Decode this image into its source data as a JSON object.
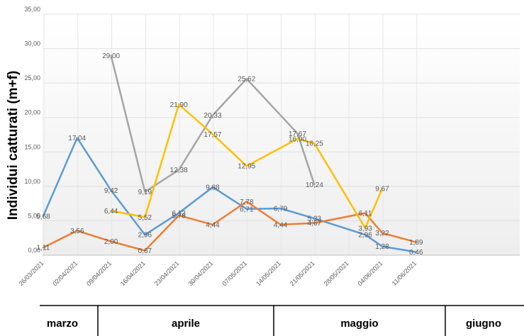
{
  "chart_data": {
    "type": "line",
    "ylabel": "Individui catturati (m+f)",
    "ylim": [
      0,
      35
    ],
    "yticks": [
      "0,00",
      "5,00",
      "10,00",
      "15,00",
      "20,00",
      "25,00",
      "30,00",
      "35,00"
    ],
    "x": [
      "26/03/2021",
      "02/04/2021",
      "09/04/2021",
      "16/04/2021",
      "23/04/2021",
      "30/04/2021",
      "07/05/2021",
      "14/05/2021",
      "21/05/2021",
      "28/05/2021",
      "04/06/2021",
      "11/06/2021"
    ],
    "grid": true,
    "series": [
      {
        "color": "#5B9BD5",
        "points": [
          {
            "x": 0,
            "y": 5.68,
            "label": "5,68"
          },
          {
            "x": 1,
            "y": 17.04,
            "label": "17,04"
          },
          {
            "x": 2,
            "y": 9.42,
            "label": "9,42"
          },
          {
            "x": 3,
            "y": 2.96,
            "label": "2,96"
          },
          {
            "x": 4,
            "y": 6.12,
            "label": "6,12"
          },
          {
            "x": 5,
            "y": 9.88,
            "label": "9,88"
          },
          {
            "x": 6,
            "y": 6.71,
            "label": "6,71"
          },
          {
            "x": 7,
            "y": 6.79,
            "label": "6,79"
          },
          {
            "x": 8,
            "y": 5.33,
            "label": "5,33"
          },
          {
            "x": 9.5,
            "y": 2.96,
            "label": "2,96"
          },
          {
            "x": 10,
            "y": 1.28,
            "label": "1,28"
          },
          {
            "x": 11,
            "y": 0.46,
            "label": "0,46"
          }
        ]
      },
      {
        "color": "#ED7D31",
        "points": [
          {
            "x": 0,
            "y": 1.11,
            "label": "1,11"
          },
          {
            "x": 1,
            "y": 3.56,
            "label": "3,56"
          },
          {
            "x": 2,
            "y": 2.0,
            "label": "2,00"
          },
          {
            "x": 3,
            "y": 0.67,
            "label": "0,67"
          },
          {
            "x": 4,
            "y": 5.78,
            "label": "5,78"
          },
          {
            "x": 5,
            "y": 4.44,
            "label": "4,44"
          },
          {
            "x": 6,
            "y": 7.78,
            "label": "7,78"
          },
          {
            "x": 7,
            "y": 4.44,
            "label": "4,44"
          },
          {
            "x": 8,
            "y": 4.67,
            "label": "4,67"
          },
          {
            "x": 9.5,
            "y": 6.11,
            "label": "6,11"
          },
          {
            "x": 10,
            "y": 3.22,
            "label": "3,22"
          },
          {
            "x": 11,
            "y": 1.89,
            "label": "1,89"
          }
        ]
      },
      {
        "color": "#A5A5A5",
        "points": [
          {
            "x": 2,
            "y": 29.0,
            "label": "29,00"
          },
          {
            "x": 3,
            "y": 9.19,
            "label": "9,19"
          },
          {
            "x": 4,
            "y": 12.38,
            "label": "12,38"
          },
          {
            "x": 5,
            "y": 20.33,
            "label": "20,33"
          },
          {
            "x": 6,
            "y": 25.62,
            "label": "25,62"
          },
          {
            "x": 7.5,
            "y": 17.67,
            "label": "17,67"
          },
          {
            "x": 8,
            "y": 10.24,
            "label": "10,24"
          }
        ]
      },
      {
        "color": "#FFC000",
        "points": [
          {
            "x": 2,
            "y": 6.44,
            "label": "6,44"
          },
          {
            "x": 3,
            "y": 5.52,
            "label": "5,52"
          },
          {
            "x": 4,
            "y": 21.9,
            "label": "21,90"
          },
          {
            "x": 5,
            "y": 17.57,
            "label": "17,57"
          },
          {
            "x": 6,
            "y": 12.95,
            "label": "12,95"
          },
          {
            "x": 7.5,
            "y": 16.9,
            "label": "16,90"
          },
          {
            "x": 8,
            "y": 16.25,
            "label": "16,25"
          },
          {
            "x": 9.5,
            "y": 3.93,
            "label": "3,93"
          },
          {
            "x": 10,
            "y": 9.67,
            "label": "9,67"
          }
        ]
      }
    ],
    "months": [
      "marzo",
      "aprile",
      "maggio",
      "giugno"
    ]
  }
}
